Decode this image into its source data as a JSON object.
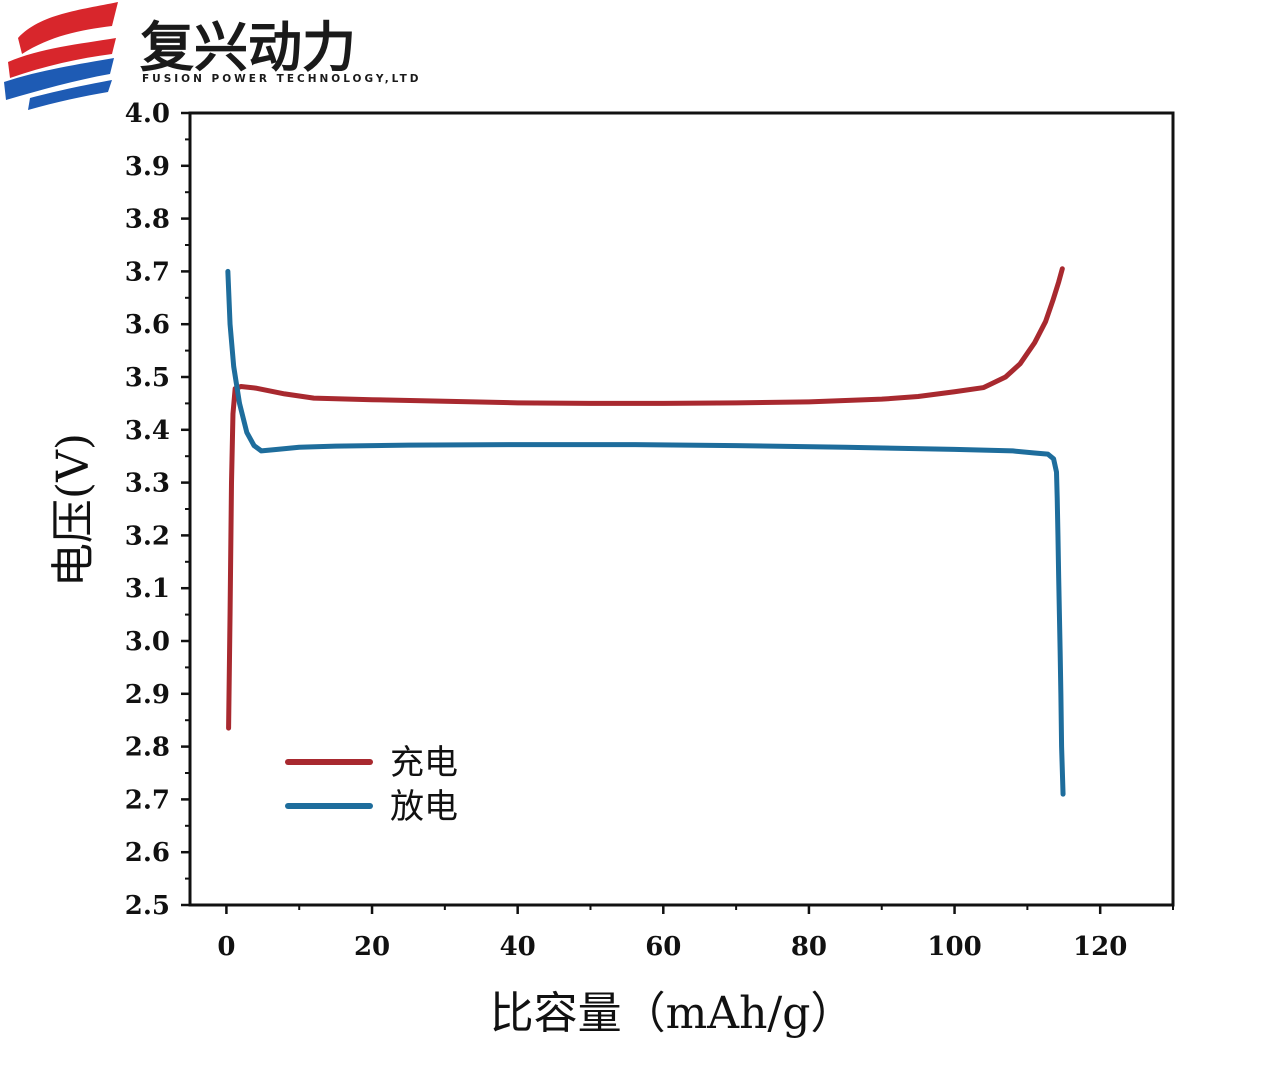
{
  "logo": {
    "name_cn": "复兴动力",
    "name_en": "FUSION POWER TECHNOLOGY,LTD",
    "colors": {
      "red": "#d8262c",
      "blue": "#1e5bb4",
      "text": "#1a1a1a"
    }
  },
  "chart_data": {
    "type": "line",
    "xlabel": "比容量（mAh/g）",
    "ylabel": "电压(V)",
    "xlim": [
      -5,
      130
    ],
    "ylim": [
      2.5,
      4.0
    ],
    "xticks": [
      0,
      20,
      40,
      60,
      80,
      100,
      120
    ],
    "xtick_labels": [
      "0",
      "20",
      "40",
      "60",
      "80",
      "100",
      "120"
    ],
    "yticks": [
      2.5,
      2.6,
      2.7,
      2.8,
      2.9,
      3.0,
      3.1,
      3.2,
      3.3,
      3.4,
      3.5,
      3.6,
      3.7,
      3.8,
      3.9,
      4.0
    ],
    "ytick_labels": [
      "2.5",
      "2.6",
      "2.7",
      "2.8",
      "2.9",
      "3.0",
      "3.1",
      "3.2",
      "3.3",
      "3.4",
      "3.5",
      "3.6",
      "3.7",
      "3.8",
      "3.9",
      "4.0"
    ],
    "grid": false,
    "legend_position": "bottom-left",
    "series": [
      {
        "name": "充电",
        "color": "#a8292f",
        "x": [
          0.3,
          0.5,
          0.7,
          0.9,
          1.2,
          2.0,
          4.0,
          8.0,
          12.0,
          20.0,
          30.0,
          40.0,
          50.0,
          60.0,
          70.0,
          80.0,
          90.0,
          95.0,
          100.0,
          104.0,
          107.0,
          109.0,
          111.0,
          112.5,
          113.5,
          114.3,
          114.8
        ],
        "y": [
          2.835,
          3.05,
          3.3,
          3.43,
          3.478,
          3.482,
          3.479,
          3.468,
          3.46,
          3.457,
          3.454,
          3.451,
          3.45,
          3.45,
          3.451,
          3.453,
          3.458,
          3.463,
          3.472,
          3.48,
          3.5,
          3.525,
          3.565,
          3.605,
          3.645,
          3.68,
          3.705
        ]
      },
      {
        "name": "放电",
        "color": "#1e6d9c",
        "x": [
          0.2,
          0.5,
          1.0,
          1.8,
          2.8,
          3.8,
          4.8,
          7.0,
          10.0,
          15.0,
          25.0,
          40.0,
          55.0,
          70.0,
          85.0,
          100.0,
          108.0,
          111.0,
          112.8,
          113.6,
          114.0,
          114.1,
          114.2,
          114.3,
          114.4,
          114.5,
          114.6,
          114.7,
          114.9
        ],
        "y": [
          3.7,
          3.6,
          3.52,
          3.45,
          3.395,
          3.37,
          3.36,
          3.363,
          3.367,
          3.369,
          3.371,
          3.372,
          3.372,
          3.37,
          3.367,
          3.363,
          3.36,
          3.356,
          3.354,
          3.345,
          3.32,
          3.27,
          3.2,
          3.12,
          3.05,
          2.98,
          2.9,
          2.8,
          2.71
        ]
      }
    ]
  }
}
